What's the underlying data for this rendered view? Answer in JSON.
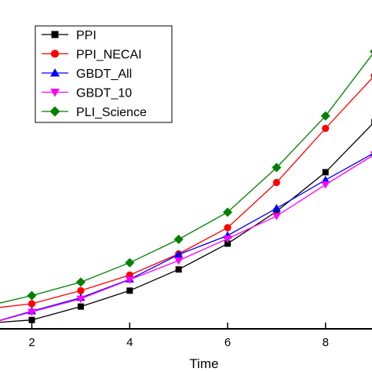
{
  "chart_data": {
    "type": "line",
    "title": "",
    "xlabel": "Time",
    "ylabel": "",
    "xlim": [
      1.35,
      8.95
    ],
    "ylim": [
      0,
      9.3
    ],
    "x_ticks": [
      2,
      4,
      6,
      8
    ],
    "x_tick_labels": [
      "2",
      "4",
      "6",
      "8"
    ],
    "grid": false,
    "legend_position": "top-left",
    "series": [
      {
        "name": "PPI",
        "color": "#000000",
        "marker": "square",
        "x": [
          1.0,
          2,
          3,
          4,
          5,
          6,
          7,
          8,
          9
        ],
        "y": [
          0.15,
          0.25,
          0.63,
          1.08,
          1.68,
          2.41,
          3.32,
          4.43,
          5.85
        ]
      },
      {
        "name": "PPI_NECAI",
        "color": "#ff0000",
        "marker": "circle",
        "x": [
          1.0,
          2,
          3,
          4,
          5,
          6,
          7,
          8,
          9
        ],
        "y": [
          0.55,
          0.71,
          1.08,
          1.52,
          2.12,
          2.86,
          4.14,
          5.67,
          7.16
        ]
      },
      {
        "name": "GBDT_All",
        "color": "#0000ff",
        "marker": "triangle-up",
        "x": [
          1.0,
          2,
          3,
          4,
          5,
          6,
          7,
          8,
          9
        ],
        "y": [
          0.1,
          0.5,
          0.88,
          1.4,
          2.1,
          2.64,
          3.41,
          4.21,
          4.98
        ]
      },
      {
        "name": "GBDT_10",
        "color": "#ff00ff",
        "marker": "triangle-down",
        "x": [
          1.0,
          2,
          3,
          4,
          5,
          6,
          7,
          8,
          9
        ],
        "y": [
          0.1,
          0.48,
          0.85,
          1.39,
          1.93,
          2.55,
          3.19,
          4.08,
          4.93
        ]
      },
      {
        "name": "PLI_Science",
        "color": "#008000",
        "marker": "diamond",
        "x": [
          1.0,
          2,
          3,
          4,
          5,
          6,
          7,
          8,
          9
        ],
        "y": [
          0.62,
          0.94,
          1.32,
          1.87,
          2.53,
          3.3,
          4.56,
          6.02,
          7.84
        ]
      }
    ]
  }
}
